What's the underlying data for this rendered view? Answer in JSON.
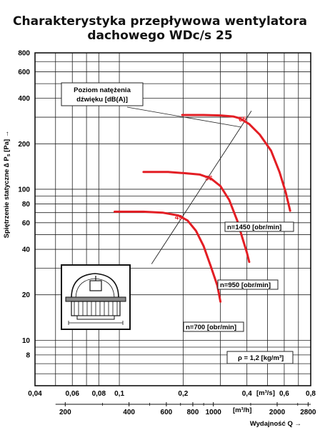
{
  "title_line1": "Charakterystyka przepływowa wentylatora",
  "title_line2": "dachowego WDc/s 25",
  "chart_data": {
    "type": "line",
    "ylabel": "Spiętrzenie statyczne Δ P_s [Pa] →",
    "ylabel_main": "Spiętrzenie statyczne ∆ P",
    "ylabel_sub": "s",
    "ylabel_tail": " [Pa] →",
    "xlabel": "Wydajność Q →",
    "x_unit_m3s": "[m³/s]",
    "x_unit_m3h": "[m³/h]",
    "y_scale": "log",
    "x_scale": "log",
    "ylim": [
      5,
      800
    ],
    "xlim_m3s": [
      0.04,
      0.8
    ],
    "y_ticks": [
      800,
      600,
      400,
      200,
      100,
      80,
      60,
      40,
      20,
      10,
      8
    ],
    "x_ticks_m3s": [
      {
        "v": 0.04,
        "label": "0,04"
      },
      {
        "v": 0.06,
        "label": "0,06"
      },
      {
        "v": 0.08,
        "label": "0,08"
      },
      {
        "v": 0.1,
        "label": "0,1"
      },
      {
        "v": 0.2,
        "label": "0,2"
      },
      {
        "v": 0.4,
        "label": "0,4"
      },
      {
        "v": 0.6,
        "label": "0,6"
      },
      {
        "v": 0.8,
        "label": "0,8"
      }
    ],
    "x_ticks_m3h": [
      200,
      400,
      600,
      800,
      1000,
      2000,
      2800
    ],
    "series": [
      {
        "name": "n=1450 [obr/min]",
        "x": [
          0.198,
          0.25,
          0.3,
          0.345,
          0.37,
          0.41,
          0.46,
          0.52,
          0.57,
          0.61,
          0.64
        ],
        "y": [
          310,
          310,
          308,
          303,
          295,
          270,
          230,
          180,
          130,
          95,
          72
        ]
      },
      {
        "name": "n=950 [obr/min]",
        "x": [
          0.13,
          0.17,
          0.2,
          0.24,
          0.27,
          0.3,
          0.33,
          0.36,
          0.38,
          0.4,
          0.41
        ],
        "y": [
          130,
          130,
          128,
          125,
          118,
          105,
          85,
          62,
          48,
          38,
          33
        ]
      },
      {
        "name": "n=700 [obr/min]",
        "x": [
          0.095,
          0.13,
          0.16,
          0.19,
          0.21,
          0.23,
          0.25,
          0.27,
          0.29,
          0.3
        ],
        "y": [
          71,
          71,
          70,
          67,
          62,
          53,
          42,
          31,
          23,
          18
        ]
      }
    ],
    "noise_levels": [
      {
        "label": "65",
        "x": 0.36,
        "y": 290
      },
      {
        "label": "56",
        "x": 0.25,
        "y": 118
      },
      {
        "label": "49",
        "x": 0.18,
        "y": 65
      }
    ],
    "noise_line": {
      "x": [
        0.142,
        0.42
      ],
      "y": [
        32,
        330
      ]
    },
    "annotation_box": "Poziom natężenia dźwięku [dB(A)]",
    "annotation_line1": "Poziom natężenia",
    "annotation_line2": "dźwięku [dB(A)]",
    "density_label": "ρ = 1,2 [kg/m³]",
    "colors": {
      "curve": "#e31e24",
      "grid": "#222222",
      "text": "#111111"
    }
  },
  "footer_text": ""
}
